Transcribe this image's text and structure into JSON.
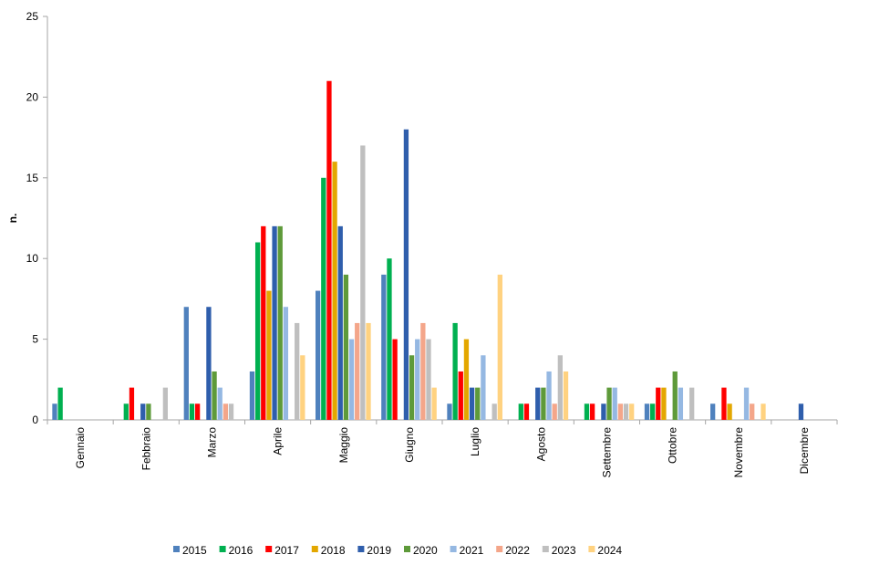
{
  "chart_data": {
    "type": "bar",
    "title": "",
    "xlabel": "",
    "ylabel": "n.",
    "ylim": [
      0,
      25
    ],
    "yticks": [
      0,
      5,
      10,
      15,
      20,
      25
    ],
    "grid": false,
    "legend_position": "bottom",
    "categories": [
      "Gennaio",
      "Febbraio",
      "Marzo",
      "Aprile",
      "Maggio",
      "Giugno",
      "Luglio",
      "Agosto",
      "Settembre",
      "Ottobre",
      "Novembre",
      "Dicembre"
    ],
    "series": [
      {
        "name": "2015",
        "color": "#4F81BD",
        "values": [
          1,
          0,
          7,
          3,
          8,
          9,
          1,
          0,
          0,
          1,
          1,
          0
        ]
      },
      {
        "name": "2016",
        "color": "#00B050",
        "values": [
          2,
          1,
          1,
          11,
          15,
          10,
          6,
          1,
          1,
          1,
          0,
          0
        ]
      },
      {
        "name": "2017",
        "color": "#FF0000",
        "values": [
          0,
          2,
          1,
          12,
          21,
          5,
          3,
          1,
          1,
          2,
          2,
          0
        ]
      },
      {
        "name": "2018",
        "color": "#E3A700",
        "values": [
          0,
          0,
          0,
          8,
          16,
          0,
          5,
          0,
          0,
          2,
          1,
          0
        ]
      },
      {
        "name": "2019",
        "color": "#2F5EAC",
        "values": [
          0,
          1,
          7,
          12,
          12,
          18,
          2,
          2,
          1,
          0,
          0,
          1
        ]
      },
      {
        "name": "2020",
        "color": "#5E9A3A",
        "values": [
          0,
          1,
          3,
          12,
          9,
          4,
          2,
          2,
          2,
          3,
          0,
          0
        ]
      },
      {
        "name": "2021",
        "color": "#95B8E2",
        "values": [
          0,
          0,
          2,
          7,
          5,
          5,
          4,
          3,
          2,
          2,
          2,
          0
        ]
      },
      {
        "name": "2022",
        "color": "#F4A68A",
        "values": [
          0,
          0,
          1,
          0,
          6,
          6,
          0,
          1,
          1,
          0,
          1,
          0
        ]
      },
      {
        "name": "2023",
        "color": "#BFBFBF",
        "values": [
          0,
          2,
          1,
          6,
          17,
          5,
          1,
          4,
          1,
          2,
          0,
          0
        ]
      },
      {
        "name": "2024",
        "color": "#FFD280",
        "values": [
          0,
          0,
          0,
          4,
          6,
          2,
          9,
          3,
          1,
          0,
          1,
          0
        ]
      }
    ]
  }
}
